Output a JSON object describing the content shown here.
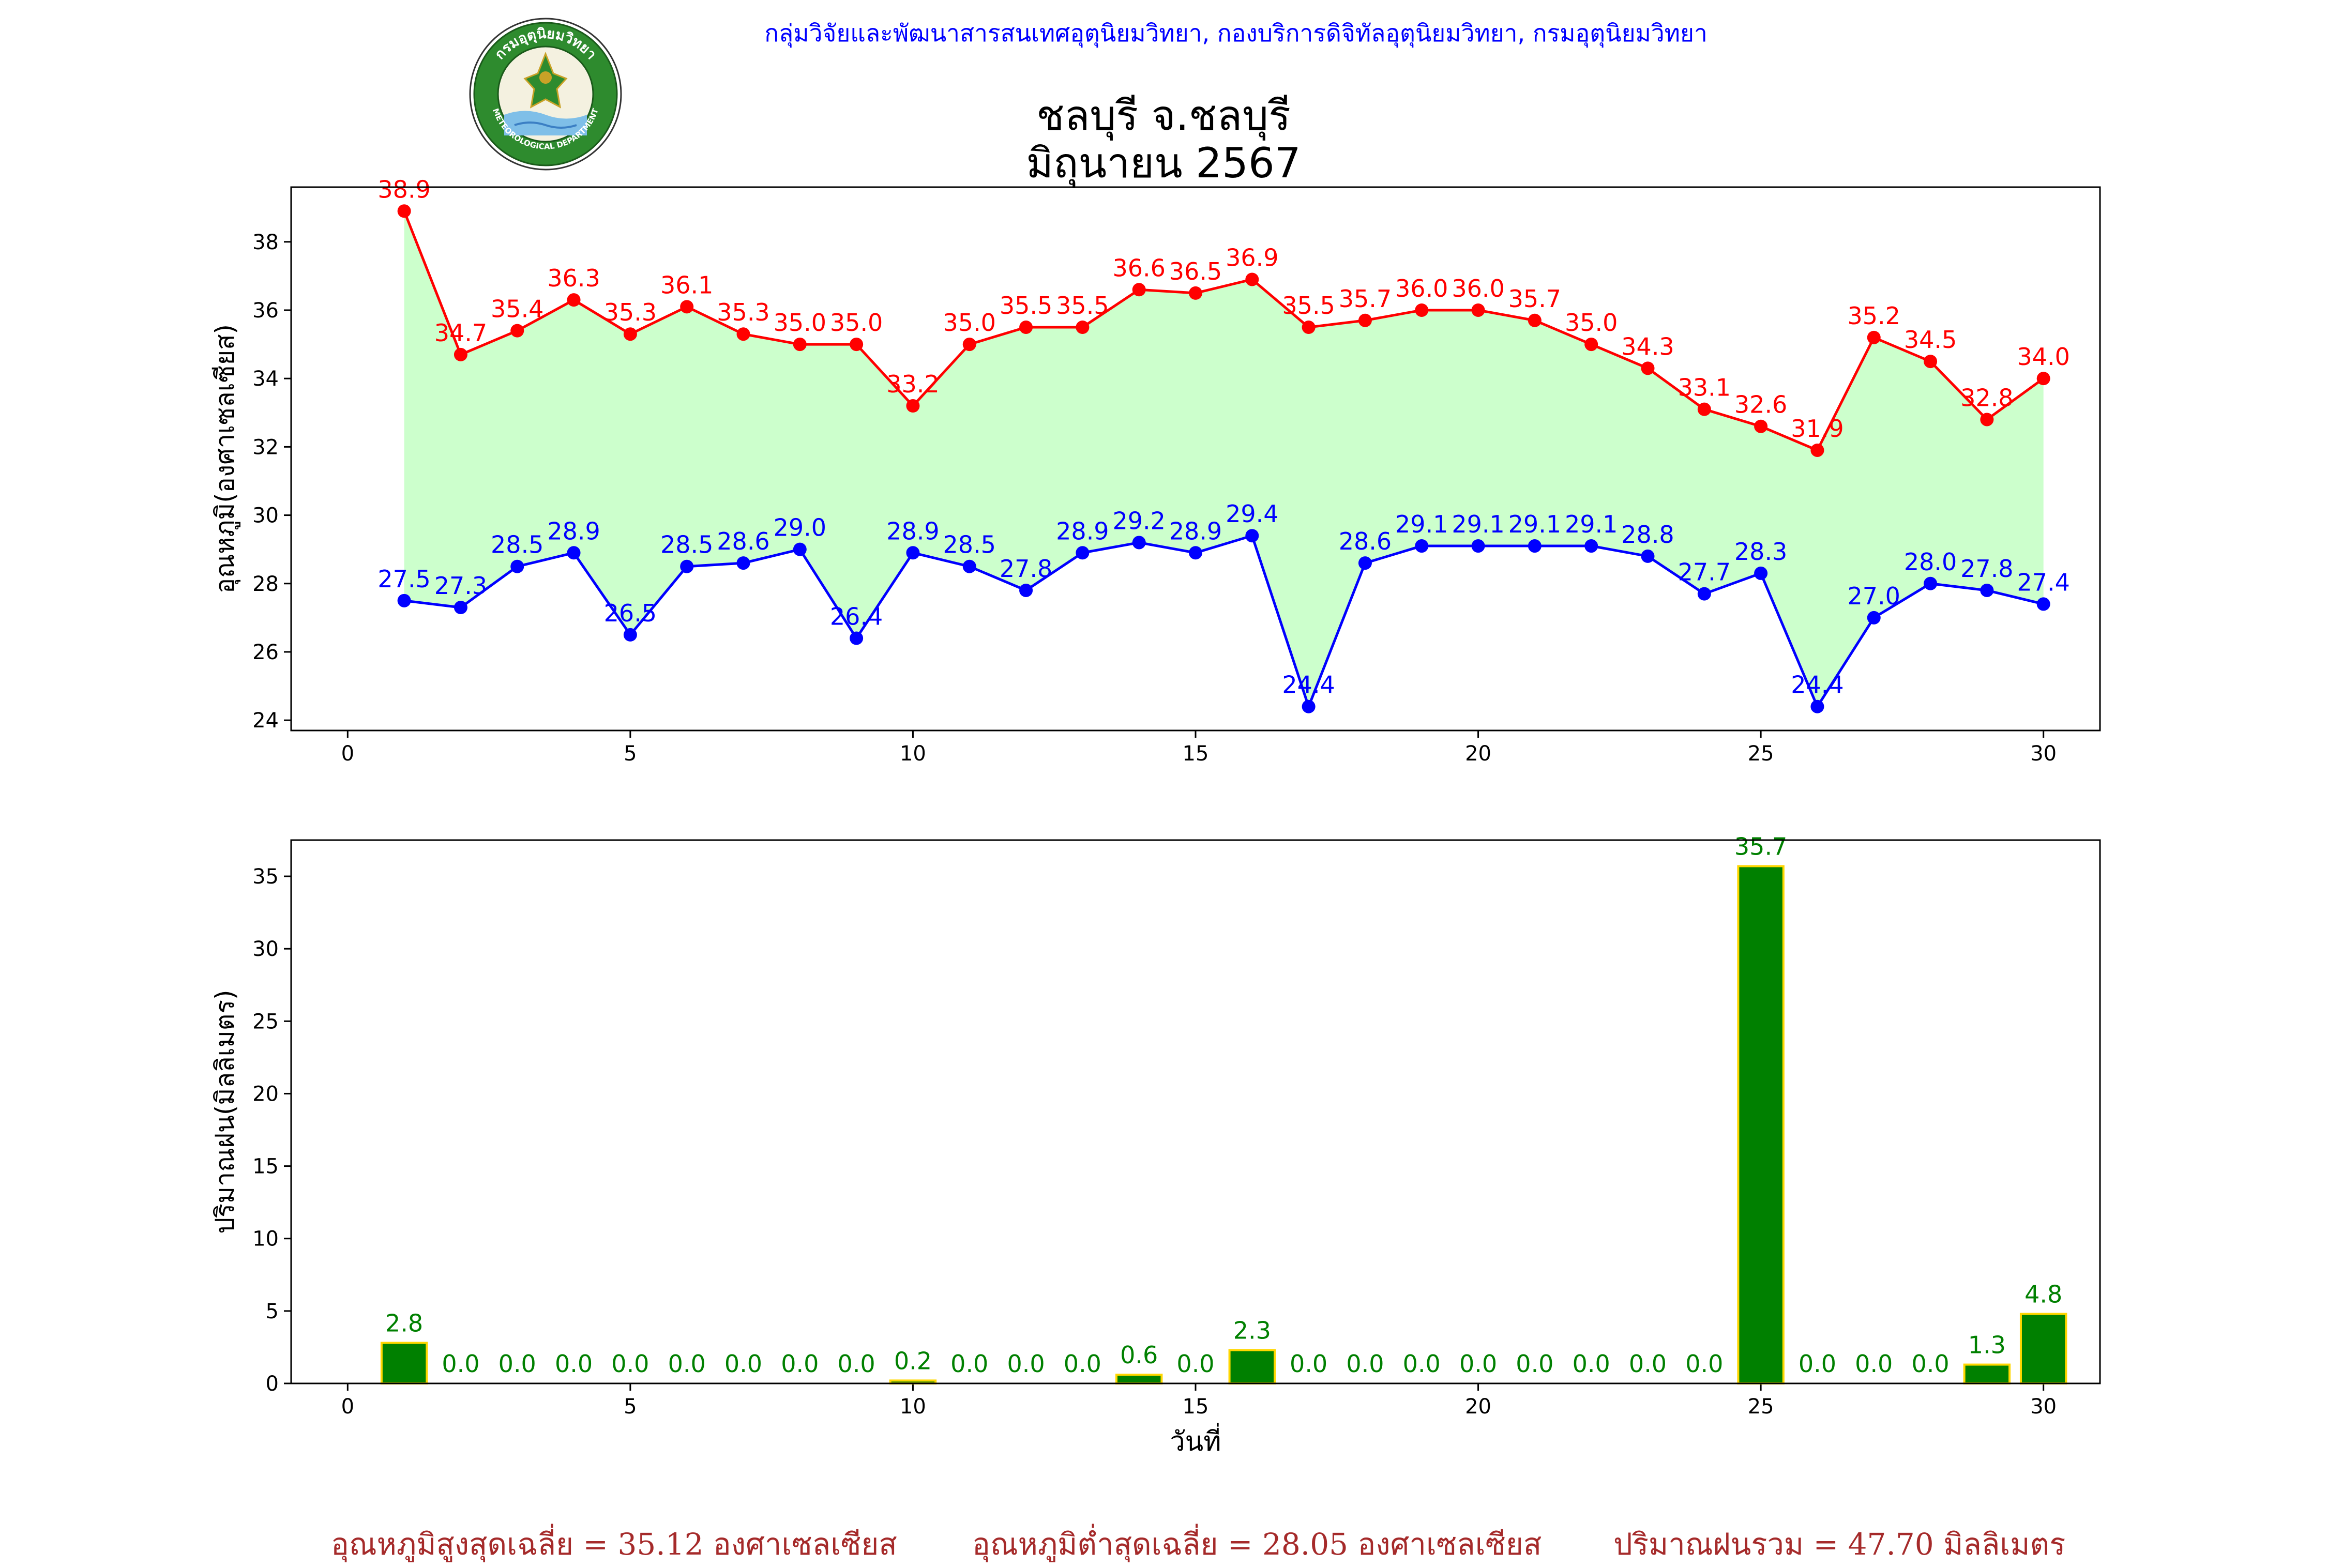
{
  "header": {
    "organization": "กลุ่มวิจัยและพัฒนาสารสนเทศอุตุนิยมวิทยา, กองบริการดิจิทัลอุตุนิยมวิทยา, กรมอุตุนิยมวิทยา"
  },
  "logo": {
    "top_text": "กรมอุตุนิยมวิทยา",
    "bottom_text": "METEOROLOGICAL DEPARTMENT"
  },
  "title": {
    "line1": "ชลบุรี จ.ชลบุรี",
    "line2": "มิถุนายน 2567"
  },
  "summary": {
    "avg_max": "อุณหภูมิสูงสุดเฉลี่ย = 35.12 องศาเซลเซียส",
    "avg_min": "อุณหภูมิต่ำสุดเฉลี่ย = 28.05 องศาเซลเซียส",
    "total_rain": "ปริมาณฝนรวม = 47.70 มิลลิเมตร"
  },
  "colors": {
    "max_line": "#ff0000",
    "min_line": "#0000ff",
    "fill": "#ccffcc",
    "bar_fill": "#008000",
    "bar_edge": "#ffd700",
    "bar_label": "#008000",
    "summary": "#a52a2a"
  },
  "chart_data": [
    {
      "type": "line",
      "ylabel": "อุณหภูมิ(องศาเซลเซียส)",
      "xlabel": "",
      "xlim": [
        -1,
        31
      ],
      "ylim": [
        23.7,
        39.6
      ],
      "xticks": [
        0,
        5,
        10,
        15,
        20,
        25,
        30
      ],
      "yticks": [
        24,
        26,
        28,
        30,
        32,
        34,
        36,
        38
      ],
      "x": [
        1,
        2,
        3,
        4,
        5,
        6,
        7,
        8,
        9,
        10,
        11,
        12,
        13,
        14,
        15,
        16,
        17,
        18,
        19,
        20,
        21,
        22,
        23,
        24,
        25,
        26,
        27,
        28,
        29,
        30
      ],
      "series": [
        {
          "role": "max",
          "values": [
            38.9,
            34.7,
            35.4,
            36.3,
            35.3,
            36.1,
            35.3,
            35.0,
            35.0,
            33.2,
            35.0,
            35.5,
            35.5,
            36.6,
            36.5,
            36.9,
            35.5,
            35.7,
            36.0,
            36.0,
            35.7,
            35.0,
            34.3,
            33.1,
            32.6,
            31.9,
            35.2,
            34.5,
            32.8,
            34.0
          ]
        },
        {
          "role": "min",
          "values": [
            27.5,
            27.3,
            28.5,
            28.9,
            26.5,
            28.5,
            28.6,
            29.0,
            26.4,
            28.9,
            28.5,
            27.8,
            28.9,
            29.2,
            28.9,
            29.4,
            24.4,
            28.6,
            29.1,
            29.1,
            29.1,
            29.1,
            28.8,
            27.7,
            28.3,
            24.4,
            27.0,
            28.0,
            27.8,
            27.4
          ]
        }
      ]
    },
    {
      "type": "bar",
      "ylabel": "ปริมาณฝน(มิลลิเมตร)",
      "xlabel": "วันที่",
      "xlim": [
        -1,
        31
      ],
      "ylim": [
        0,
        37.5
      ],
      "xticks": [
        0,
        5,
        10,
        15,
        20,
        25,
        30
      ],
      "yticks": [
        0,
        5,
        10,
        15,
        20,
        25,
        30,
        35
      ],
      "x": [
        1,
        2,
        3,
        4,
        5,
        6,
        7,
        8,
        9,
        10,
        11,
        12,
        13,
        14,
        15,
        16,
        17,
        18,
        19,
        20,
        21,
        22,
        23,
        24,
        25,
        26,
        27,
        28,
        29,
        30
      ],
      "values": [
        2.8,
        0.0,
        0.0,
        0.0,
        0.0,
        0.0,
        0.0,
        0.0,
        0.0,
        0.2,
        0.0,
        0.0,
        0.0,
        0.6,
        0.0,
        2.3,
        0.0,
        0.0,
        0.0,
        0.0,
        0.0,
        0.0,
        0.0,
        0.0,
        35.7,
        0.0,
        0.0,
        0.0,
        1.3,
        4.8
      ]
    }
  ]
}
